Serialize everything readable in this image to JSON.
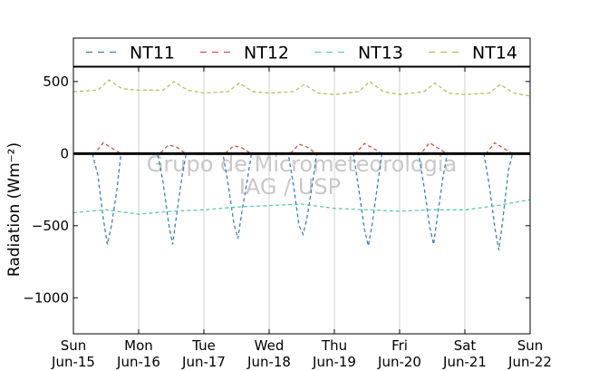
{
  "chart_data": {
    "type": "line",
    "title": "",
    "ylabel": "Radiation (Wm⁻²)",
    "xlabel": "",
    "ylim": [
      -1250,
      600
    ],
    "yticks": [
      500,
      0,
      -500,
      -1000
    ],
    "ytick_labels": [
      "500",
      "0",
      "−500",
      "−1000"
    ],
    "xlim": [
      "2014-06-15",
      "2014-06-22"
    ],
    "x_ticks": [
      {
        "day": "Sun",
        "date": "Jun-15"
      },
      {
        "day": "Mon",
        "date": "Jun-16"
      },
      {
        "day": "Tue",
        "date": "Jun-17"
      },
      {
        "day": "Wed",
        "date": "Jun-18"
      },
      {
        "day": "Thu",
        "date": "Jun-19"
      },
      {
        "day": "Fri",
        "date": "Jun-20"
      },
      {
        "day": "Sat",
        "date": "Jun-21"
      },
      {
        "day": "Sun",
        "date": "Jun-22"
      }
    ],
    "grid": "vertical",
    "legend_position": "top",
    "reference_line": 0,
    "watermark": [
      "Grupo de Micrometeorologia",
      "IAG / USP"
    ],
    "series": [
      {
        "name": "NT11",
        "color": "#3f7fb5",
        "style": "dashed",
        "x": [
          "2014-06-15 00:00",
          "2014-06-15 07:00",
          "2014-06-15 09:00",
          "2014-06-15 11:00",
          "2014-06-15 12:30",
          "2014-06-15 14:00",
          "2014-06-15 16:00",
          "2014-06-15 17:30",
          "2014-06-16 00:00",
          "2014-06-16 07:00",
          "2014-06-16 09:00",
          "2014-06-16 11:00",
          "2014-06-16 12:30",
          "2014-06-16 14:00",
          "2014-06-16 16:00",
          "2014-06-16 17:30",
          "2014-06-17 00:00",
          "2014-06-17 07:00",
          "2014-06-17 09:00",
          "2014-06-17 11:00",
          "2014-06-17 12:30",
          "2014-06-17 14:00",
          "2014-06-17 16:00",
          "2014-06-17 17:30",
          "2014-06-18 00:00",
          "2014-06-18 07:00",
          "2014-06-18 09:00",
          "2014-06-18 11:00",
          "2014-06-18 12:30",
          "2014-06-18 14:00",
          "2014-06-18 16:00",
          "2014-06-18 17:30",
          "2014-06-19 00:00",
          "2014-06-19 07:00",
          "2014-06-19 09:00",
          "2014-06-19 11:00",
          "2014-06-19 12:30",
          "2014-06-19 14:00",
          "2014-06-19 16:00",
          "2014-06-19 17:30",
          "2014-06-20 00:00",
          "2014-06-20 07:00",
          "2014-06-20 09:00",
          "2014-06-20 11:00",
          "2014-06-20 12:30",
          "2014-06-20 14:00",
          "2014-06-20 16:00",
          "2014-06-20 17:30",
          "2014-06-21 00:00",
          "2014-06-21 07:00",
          "2014-06-21 09:00",
          "2014-06-21 11:00",
          "2014-06-21 12:30",
          "2014-06-21 14:00",
          "2014-06-21 16:00",
          "2014-06-21 17:30",
          "2014-06-22 00:00"
        ],
        "y": [
          0,
          0,
          -150,
          -450,
          -630,
          -500,
          -250,
          0,
          0,
          0,
          -200,
          -480,
          -630,
          -420,
          -150,
          0,
          0,
          0,
          -220,
          -480,
          -590,
          -400,
          -180,
          0,
          0,
          0,
          -220,
          -500,
          -560,
          -440,
          -200,
          0,
          0,
          0,
          -250,
          -520,
          -640,
          -480,
          -200,
          0,
          0,
          0,
          -230,
          -500,
          -630,
          -420,
          -160,
          0,
          0,
          0,
          -220,
          -510,
          -670,
          -450,
          -120,
          0,
          0
        ]
      },
      {
        "name": "NT12",
        "color": "#c8534b",
        "style": "dashed",
        "x": [
          "2014-06-15 00:00",
          "2014-06-15 08:00",
          "2014-06-15 11:00",
          "2014-06-15 14:00",
          "2014-06-15 17:00",
          "2014-06-16 00:00",
          "2014-06-16 08:00",
          "2014-06-16 11:00",
          "2014-06-16 14:00",
          "2014-06-16 17:00",
          "2014-06-17 00:00",
          "2014-06-17 08:00",
          "2014-06-17 11:00",
          "2014-06-17 14:00",
          "2014-06-17 17:00",
          "2014-06-18 00:00",
          "2014-06-18 08:00",
          "2014-06-18 11:00",
          "2014-06-18 14:00",
          "2014-06-18 17:00",
          "2014-06-19 00:00",
          "2014-06-19 08:00",
          "2014-06-19 11:00",
          "2014-06-19 14:00",
          "2014-06-19 17:00",
          "2014-06-20 00:00",
          "2014-06-20 08:00",
          "2014-06-20 11:00",
          "2014-06-20 14:00",
          "2014-06-20 17:00",
          "2014-06-21 00:00",
          "2014-06-21 08:00",
          "2014-06-21 11:00",
          "2014-06-21 14:00",
          "2014-06-21 17:00",
          "2014-06-22 00:00"
        ],
        "y": [
          0,
          5,
          75,
          40,
          5,
          0,
          5,
          60,
          45,
          5,
          0,
          5,
          55,
          40,
          5,
          0,
          5,
          65,
          45,
          5,
          0,
          5,
          70,
          40,
          5,
          0,
          5,
          75,
          40,
          5,
          0,
          5,
          75,
          40,
          5,
          0
        ]
      },
      {
        "name": "NT13",
        "color": "#5fc7ad",
        "style": "dashed",
        "x": [
          "2014-06-15 00:00",
          "2014-06-15 12:00",
          "2014-06-16 00:00",
          "2014-06-16 12:00",
          "2014-06-17 00:00",
          "2014-06-17 12:00",
          "2014-06-18 00:00",
          "2014-06-18 12:00",
          "2014-06-19 00:00",
          "2014-06-19 12:00",
          "2014-06-20 00:00",
          "2014-06-20 12:00",
          "2014-06-21 00:00",
          "2014-06-21 12:00",
          "2014-06-22 00:00"
        ],
        "y": [
          -410,
          -390,
          -420,
          -400,
          -390,
          -370,
          -360,
          -350,
          -380,
          -390,
          -400,
          -390,
          -390,
          -360,
          -320
        ]
      },
      {
        "name": "NT14",
        "color": "#b6bd5e",
        "style": "dashed",
        "x": [
          "2014-06-15 00:00",
          "2014-06-15 09:00",
          "2014-06-15 13:00",
          "2014-06-15 18:00",
          "2014-06-16 00:00",
          "2014-06-16 09:00",
          "2014-06-16 13:00",
          "2014-06-16 18:00",
          "2014-06-17 00:00",
          "2014-06-17 09:00",
          "2014-06-17 13:00",
          "2014-06-17 18:00",
          "2014-06-18 00:00",
          "2014-06-18 09:00",
          "2014-06-18 13:00",
          "2014-06-18 18:00",
          "2014-06-19 00:00",
          "2014-06-19 09:00",
          "2014-06-19 13:00",
          "2014-06-19 18:00",
          "2014-06-20 00:00",
          "2014-06-20 09:00",
          "2014-06-20 13:00",
          "2014-06-20 18:00",
          "2014-06-21 00:00",
          "2014-06-21 09:00",
          "2014-06-21 13:00",
          "2014-06-21 18:00",
          "2014-06-22 00:00"
        ],
        "y": [
          430,
          440,
          510,
          450,
          440,
          440,
          500,
          440,
          420,
          430,
          490,
          430,
          420,
          430,
          480,
          420,
          410,
          430,
          500,
          430,
          410,
          430,
          490,
          420,
          410,
          420,
          480,
          420,
          400
        ]
      }
    ]
  }
}
